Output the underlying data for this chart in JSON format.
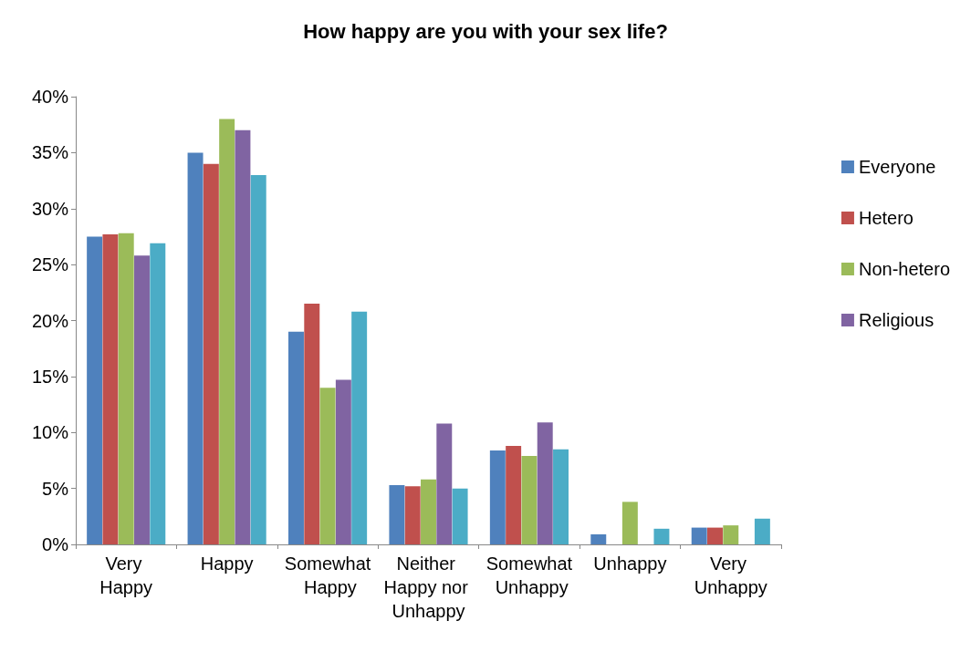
{
  "chart_data": {
    "type": "bar",
    "title": "How happy are you with your sex life?",
    "categories": [
      "Very Happy",
      "Happy",
      "Somewhat Happy",
      "Neither Happy nor Unhappy",
      "Somewhat Unhappy",
      "Unhappy",
      "Very Unhappy"
    ],
    "series": [
      {
        "name": "Everyone",
        "color": "#4f81bd",
        "values": [
          27.5,
          35,
          19,
          5.3,
          8.4,
          0.9,
          1.5
        ]
      },
      {
        "name": "Hetero",
        "color": "#c0504d",
        "values": [
          27.7,
          34,
          21.5,
          5.2,
          8.8,
          0,
          1.5
        ]
      },
      {
        "name": "Non-hetero",
        "color": "#9bbb59",
        "values": [
          27.8,
          38,
          14,
          5.8,
          7.9,
          3.8,
          1.7
        ]
      },
      {
        "name": "Religious",
        "color": "#8064a2",
        "values": [
          25.8,
          37,
          14.7,
          10.8,
          10.9,
          0,
          0
        ]
      },
      {
        "color": "#4bacc6",
        "values": [
          26.9,
          33,
          20.8,
          5,
          8.5,
          1.4,
          2.3
        ]
      }
    ],
    "ylim": [
      0,
      40
    ],
    "yticks": [
      {
        "value": 0,
        "label": "0%"
      },
      {
        "value": 5,
        "label": "5%"
      },
      {
        "value": 10,
        "label": "10%"
      },
      {
        "value": 15,
        "label": "15%"
      },
      {
        "value": 20,
        "label": "20%"
      },
      {
        "value": 25,
        "label": "25%"
      },
      {
        "value": 30,
        "label": "30%"
      },
      {
        "value": 35,
        "label": "35%"
      },
      {
        "value": 40,
        "label": "40%"
      }
    ],
    "grid": false,
    "legend": "right"
  }
}
